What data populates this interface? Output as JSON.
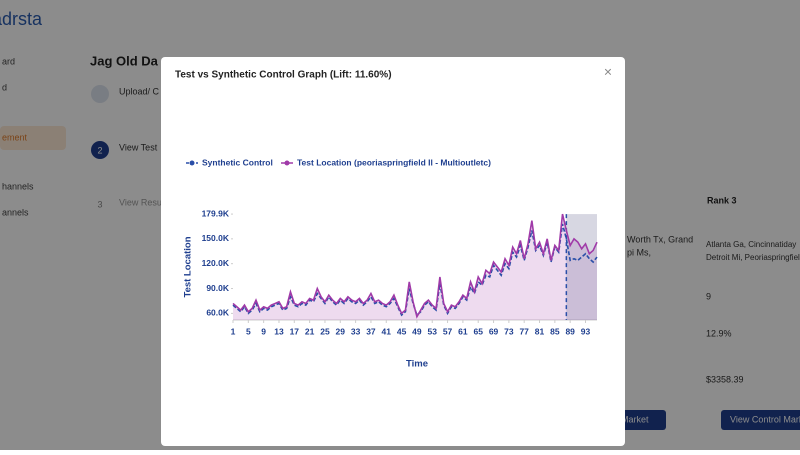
{
  "background": {
    "logo": "adrsta",
    "nav": [
      "ard",
      "d",
      "ement",
      "hannels",
      "annels"
    ],
    "heading": "Jag Old Da",
    "steps": [
      "Upload/ C",
      "View Test",
      "View Resu"
    ],
    "step_numbers": [
      "2",
      "3"
    ],
    "rank_header": "Rank 3",
    "cell_left": [
      "Worth Tx, Grand",
      "pi Ms,"
    ],
    "cell_right": [
      "Atlanta Ga, Cincinnatiday",
      "Detroit Mi, Peoriaspringfield"
    ],
    "stats": [
      "9",
      "12.9%",
      "$3358.39"
    ],
    "buttons": [
      "al Market",
      "View Control Mark"
    ]
  },
  "modal": {
    "title": "Test vs Synthetic Control Graph (Lift: 11.60%)",
    "close": "×"
  },
  "chart_data": {
    "type": "line",
    "x_label": "Time",
    "y_label": "Test Location",
    "x": [
      1,
      2,
      3,
      4,
      5,
      6,
      7,
      8,
      9,
      10,
      11,
      12,
      13,
      14,
      15,
      16,
      17,
      18,
      19,
      20,
      21,
      22,
      23,
      24,
      25,
      26,
      27,
      28,
      29,
      30,
      31,
      32,
      33,
      34,
      35,
      36,
      37,
      38,
      39,
      40,
      41,
      42,
      43,
      44,
      45,
      46,
      47,
      48,
      49,
      50,
      51,
      52,
      53,
      54,
      55,
      56,
      57,
      58,
      59,
      60,
      61,
      62,
      63,
      64,
      65,
      66,
      67,
      68,
      69,
      70,
      71,
      72,
      73,
      74,
      75,
      76,
      77,
      78,
      79,
      80,
      81,
      82,
      83,
      84,
      85,
      86,
      87,
      88,
      89,
      90,
      91,
      92,
      93,
      94,
      95,
      96
    ],
    "xlim": [
      1,
      96
    ],
    "xticks": [
      1,
      5,
      9,
      13,
      17,
      21,
      25,
      29,
      33,
      37,
      41,
      45,
      49,
      53,
      57,
      61,
      65,
      69,
      73,
      77,
      81,
      85,
      89,
      93
    ],
    "ylim": [
      52000,
      180000
    ],
    "yticks": [
      {
        "value": 60000,
        "label": "60.0K"
      },
      {
        "value": 90000,
        "label": "90.0K"
      },
      {
        "value": 120000,
        "label": "120.0K"
      },
      {
        "value": 150000,
        "label": "150.0K"
      },
      {
        "value": 179900,
        "label": "179.9K"
      }
    ],
    "treatment_start": 88,
    "legend": "top",
    "series": [
      {
        "name": "Synthetic Control",
        "color": "#2a4fa8",
        "dashed": true,
        "values": [
          70000,
          66000,
          62000,
          68000,
          60000,
          64000,
          72000,
          62000,
          66000,
          64000,
          68000,
          70000,
          72000,
          64000,
          66000,
          80000,
          70000,
          68000,
          72000,
          70000,
          76000,
          74000,
          84000,
          78000,
          72000,
          80000,
          74000,
          70000,
          76000,
          72000,
          78000,
          74000,
          72000,
          76000,
          70000,
          74000,
          80000,
          72000,
          74000,
          70000,
          68000,
          72000,
          78000,
          68000,
          58000,
          62000,
          90000,
          72000,
          58000,
          62000,
          70000,
          74000,
          68000,
          64000,
          96000,
          70000,
          60000,
          68000,
          66000,
          72000,
          80000,
          76000,
          92000,
          84000,
          98000,
          94000,
          106000,
          104000,
          118000,
          112000,
          106000,
          120000,
          114000,
          134000,
          128000,
          142000,
          124000,
          140000,
          160000,
          136000,
          142000,
          130000,
          146000,
          122000,
          140000,
          134000,
          168000,
          150000,
          124000,
          126000,
          124000,
          128000,
          132000,
          126000,
          122000,
          128000
        ]
      },
      {
        "name": "Test Location (peoriaspringfield Il - Multioutletc)",
        "color": "#a03aa8",
        "dashed": false,
        "values": [
          72000,
          68000,
          64000,
          70000,
          62000,
          66000,
          76000,
          64000,
          68000,
          66000,
          70000,
          72000,
          74000,
          66000,
          68000,
          86000,
          72000,
          70000,
          74000,
          72000,
          78000,
          76000,
          90000,
          80000,
          74000,
          82000,
          76000,
          72000,
          78000,
          74000,
          80000,
          76000,
          74000,
          78000,
          72000,
          76000,
          84000,
          74000,
          76000,
          72000,
          70000,
          74000,
          82000,
          70000,
          60000,
          64000,
          98000,
          74000,
          56000,
          64000,
          72000,
          76000,
          70000,
          66000,
          104000,
          72000,
          62000,
          70000,
          68000,
          74000,
          82000,
          78000,
          98000,
          86000,
          104000,
          96000,
          112000,
          108000,
          122000,
          116000,
          110000,
          126000,
          118000,
          140000,
          132000,
          148000,
          126000,
          144000,
          172000,
          138000,
          146000,
          132000,
          150000,
          124000,
          142000,
          136000,
          179900,
          160000,
          142000,
          150000,
          146000,
          138000,
          144000,
          132000,
          136000,
          146000
        ]
      }
    ]
  }
}
